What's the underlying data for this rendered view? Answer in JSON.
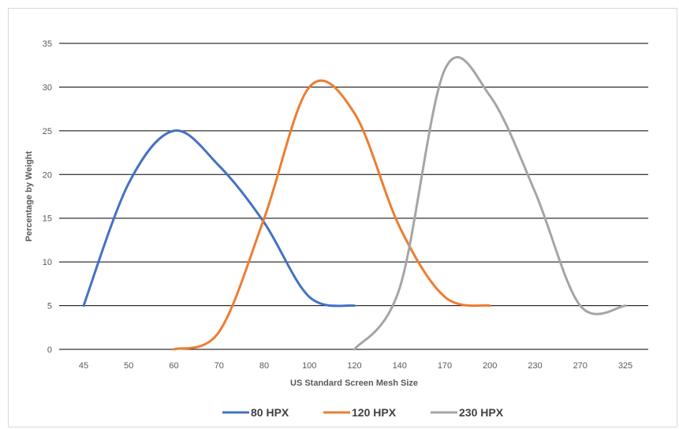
{
  "chart_data": {
    "type": "line",
    "title": "",
    "xlabel": "US Standard Screen Mesh Size",
    "ylabel": "Percentage by Weight",
    "categories": [
      "45",
      "50",
      "60",
      "70",
      "80",
      "100",
      "120",
      "140",
      "170",
      "200",
      "230",
      "270",
      "325"
    ],
    "ylim": [
      0,
      35
    ],
    "yticks": [
      0,
      5,
      10,
      15,
      20,
      25,
      30,
      35
    ],
    "grid": "horizontal",
    "legend_position": "bottom",
    "series": [
      {
        "name": "80 HPX",
        "color": "#4472C4",
        "points": [
          [
            0,
            5
          ],
          [
            1,
            19
          ],
          [
            2,
            25
          ],
          [
            3,
            21
          ],
          [
            4,
            14.5
          ],
          [
            5,
            6
          ],
          [
            6,
            5
          ]
        ]
      },
      {
        "name": "120 HPX",
        "color": "#ED7D31",
        "points": [
          [
            2,
            0
          ],
          [
            3,
            2
          ],
          [
            4,
            15
          ],
          [
            5,
            30
          ],
          [
            6,
            27
          ],
          [
            7,
            14
          ],
          [
            8,
            6
          ],
          [
            9,
            5
          ]
        ]
      },
      {
        "name": "230 HPX",
        "color": "#A5A5A5",
        "points": [
          [
            6,
            0
          ],
          [
            7,
            7
          ],
          [
            8,
            32
          ],
          [
            9,
            29
          ],
          [
            10,
            18
          ],
          [
            11,
            5
          ],
          [
            12,
            5
          ]
        ]
      }
    ]
  }
}
